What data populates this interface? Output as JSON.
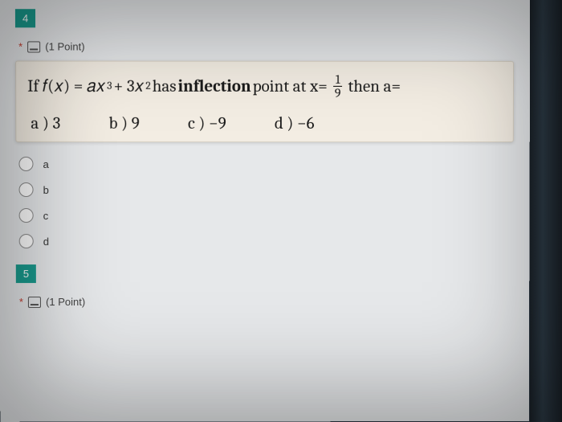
{
  "colors": {
    "badge_bg": "#1a9b8e",
    "page_bg": "#e6e8ea",
    "question_bg": "#f3ede3",
    "outer_bg": "#2a3540",
    "asterisk": "#c0392b"
  },
  "question4": {
    "number": "4",
    "points_label": "(1 Point)",
    "stem_pre": "If 𝑓(𝑥) = 𝑎𝑥",
    "stem_exp1": "3",
    "stem_mid1": " + 3𝑥",
    "stem_exp2": "2",
    "stem_mid2": "  has ",
    "stem_bold": "inflection",
    "stem_post": " point at x= ",
    "frac_num": "1",
    "frac_den": "9",
    "stem_end": " then a=",
    "choices": {
      "a": "a )  3",
      "b": "b )  9",
      "c": "c ) −9",
      "d": "d )  −6"
    },
    "options": [
      "a",
      "b",
      "c",
      "d"
    ]
  },
  "question5": {
    "number": "5",
    "points_label": "(1 Point)"
  }
}
